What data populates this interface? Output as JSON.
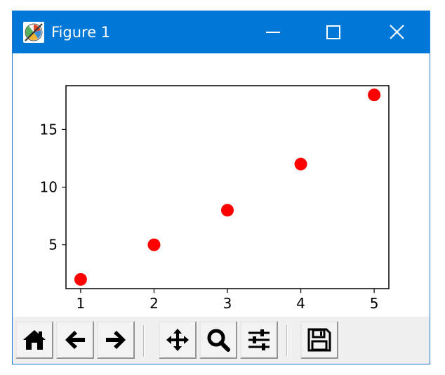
{
  "window": {
    "title": "Figure 1",
    "icon": "matplotlib-icon",
    "controls": [
      "minimize-icon",
      "maximize-icon",
      "close-icon"
    ]
  },
  "toolbar": {
    "tools": [
      {
        "name": "home",
        "icon": "home-icon"
      },
      {
        "name": "back",
        "icon": "arrow-left-icon"
      },
      {
        "name": "forward",
        "icon": "arrow-right-icon"
      },
      {
        "name": "pan",
        "icon": "move-icon"
      },
      {
        "name": "zoom",
        "icon": "magnifier-icon"
      },
      {
        "name": "subplots",
        "icon": "sliders-icon"
      },
      {
        "name": "save",
        "icon": "floppy-disk-icon"
      }
    ]
  },
  "colors": {
    "titlebar": "#0078d7",
    "marker": "#ff0000",
    "toolbar_bg": "#f0f0f0"
  },
  "chart_data": {
    "type": "scatter",
    "x": [
      1,
      2,
      3,
      4,
      5
    ],
    "y": [
      2,
      5,
      8,
      12,
      18
    ],
    "marker_color": "#ff0000",
    "xlim": [
      0.8,
      5.2
    ],
    "ylim": [
      1.2,
      18.8
    ],
    "xticks": [
      1,
      2,
      3,
      4,
      5
    ],
    "yticks": [
      5,
      10,
      15
    ],
    "grid": false,
    "title": "",
    "xlabel": "",
    "ylabel": ""
  }
}
